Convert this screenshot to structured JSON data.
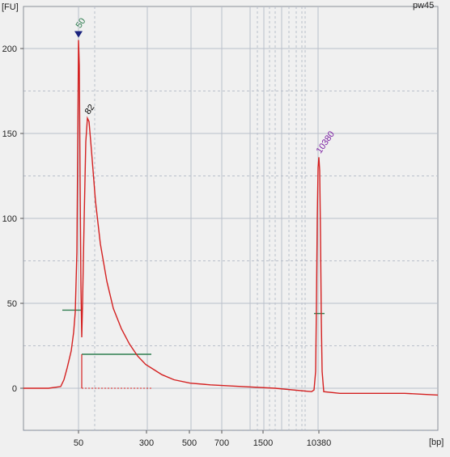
{
  "chart_data": {
    "type": "line",
    "sample": "pw45",
    "y_unit": "[FU]",
    "x_unit": "[bp]",
    "ylim": [
      -25,
      220
    ],
    "y_ticks": [
      0,
      50,
      100,
      150,
      200
    ],
    "x_ticks": [
      "50",
      "300",
      "500",
      "700",
      "1500",
      "10380"
    ],
    "grid": true,
    "colors": {
      "trace": "#d42020",
      "region": "#2e7d4f",
      "marker": "#1a237e",
      "ladder": "#7b1fa2",
      "grid": "#b9bfca",
      "plot_bg": "#f0f0f0"
    },
    "peaks": [
      {
        "label": "50",
        "size_bp": 50,
        "fu": 205,
        "color": "#2e7d4f",
        "marker": "triangle-down"
      },
      {
        "label": "82",
        "size_bp": 82,
        "fu": 159,
        "color": "#000000"
      },
      {
        "label": "10380",
        "size_bp": 10380,
        "fu": 136,
        "color": "#7b1fa2"
      }
    ],
    "trace_points": [
      [
        29,
        0
      ],
      [
        60,
        0
      ],
      [
        75,
        1
      ],
      [
        79,
        5
      ],
      [
        83,
        12
      ],
      [
        88,
        22
      ],
      [
        91,
        33
      ],
      [
        93,
        45
      ],
      [
        95,
        80
      ],
      [
        96,
        140
      ],
      [
        97,
        205
      ],
      [
        98,
        190
      ],
      [
        99,
        120
      ],
      [
        100,
        60
      ],
      [
        101,
        30
      ],
      [
        102,
        50
      ],
      [
        104,
        100
      ],
      [
        106,
        145
      ],
      [
        108,
        159
      ],
      [
        110,
        157
      ],
      [
        113,
        140
      ],
      [
        118,
        110
      ],
      [
        124,
        85
      ],
      [
        132,
        63
      ],
      [
        140,
        47
      ],
      [
        150,
        35
      ],
      [
        160,
        26
      ],
      [
        170,
        19
      ],
      [
        180,
        14
      ],
      [
        190,
        11
      ],
      [
        200,
        8
      ],
      [
        215,
        5
      ],
      [
        235,
        3
      ],
      [
        260,
        2
      ],
      [
        300,
        1
      ],
      [
        340,
        0
      ],
      [
        385,
        -2
      ],
      [
        388,
        -1
      ],
      [
        390,
        10
      ],
      [
        391,
        50
      ],
      [
        392,
        100
      ],
      [
        393,
        130
      ],
      [
        394,
        136
      ],
      [
        395,
        128
      ],
      [
        396,
        90
      ],
      [
        397,
        40
      ],
      [
        398,
        10
      ],
      [
        400,
        -2
      ],
      [
        420,
        -3
      ],
      [
        460,
        -3
      ],
      [
        500,
        -3
      ],
      [
        541,
        -4
      ]
    ]
  }
}
